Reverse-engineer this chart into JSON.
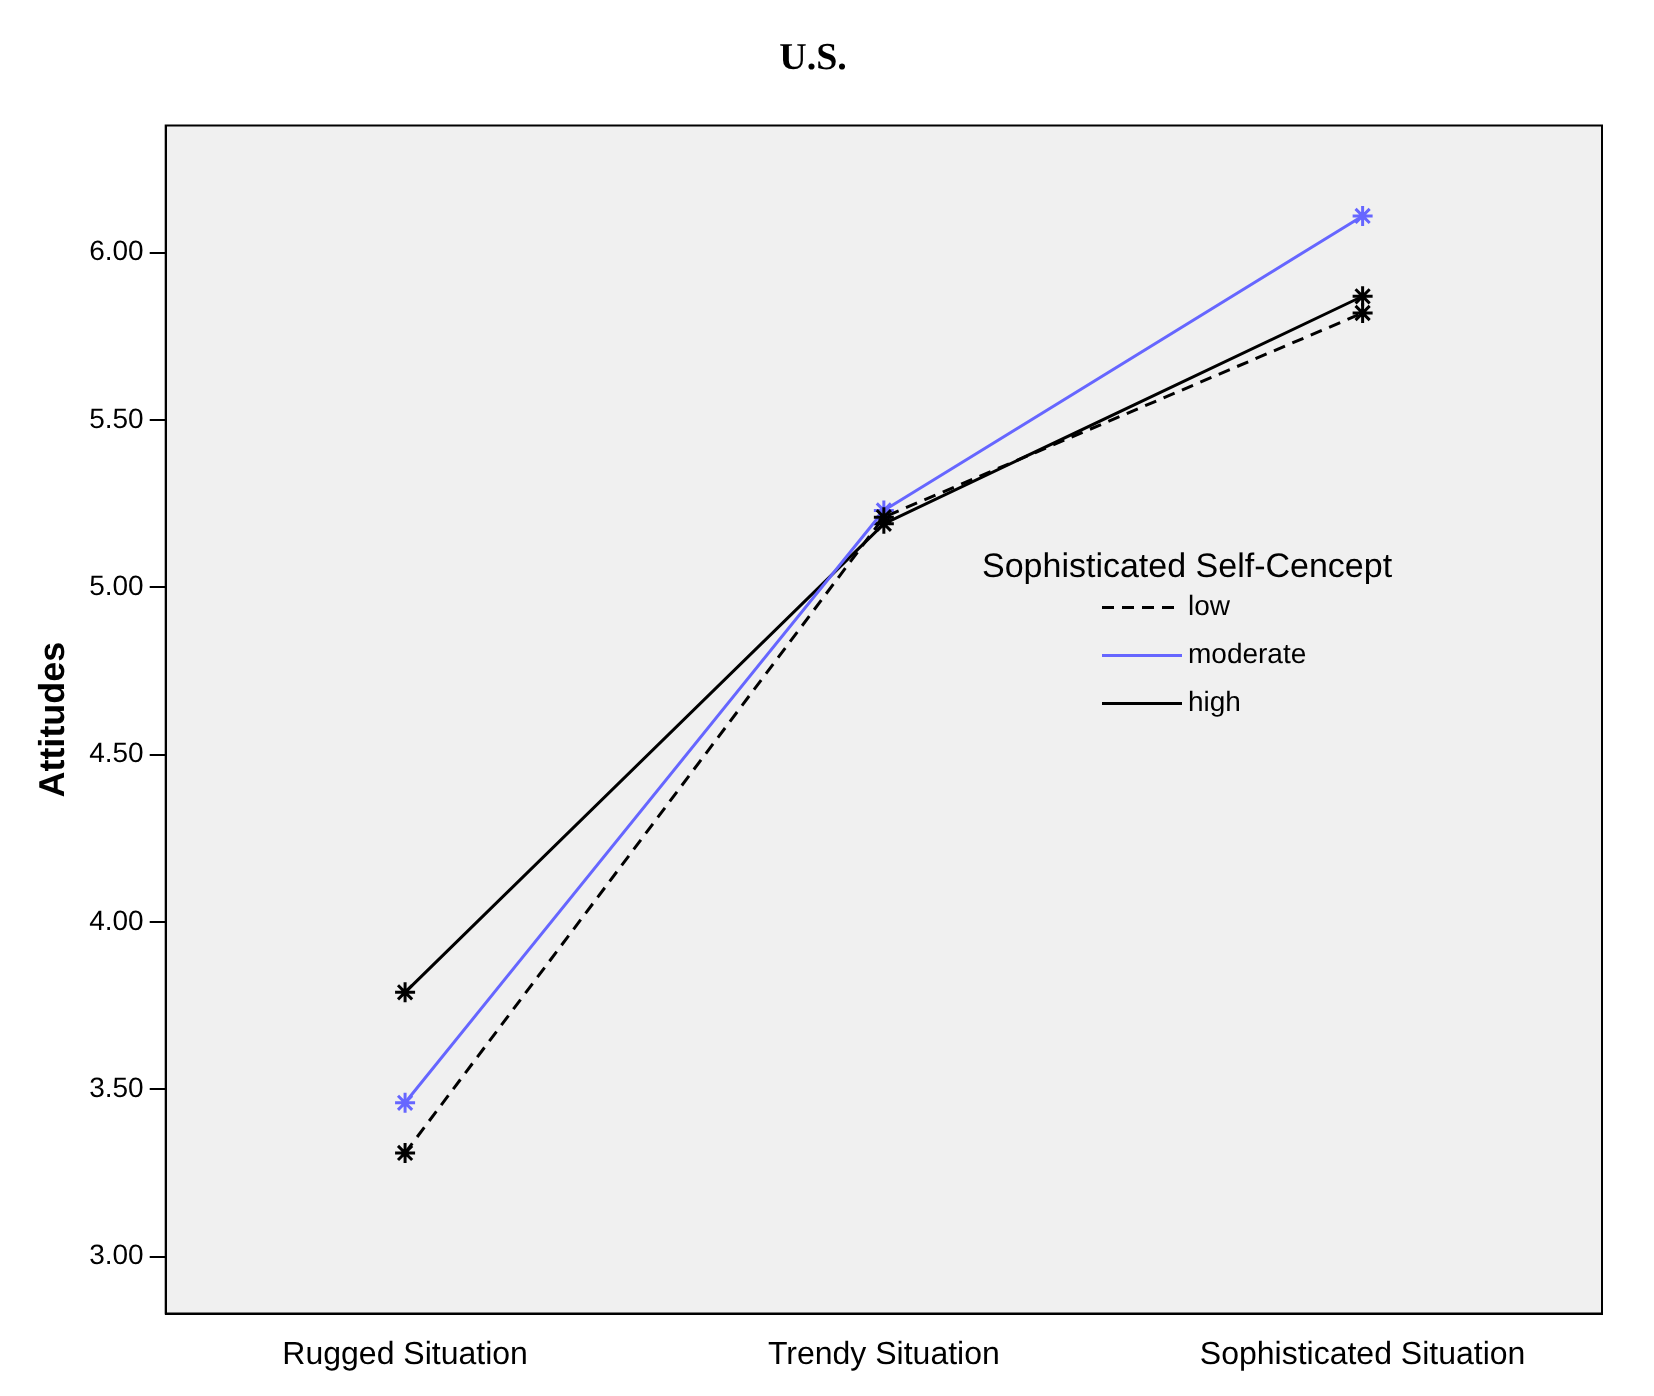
{
  "chart_data": {
    "type": "line",
    "title": "U.S.",
    "ylabel": "Attitudes",
    "legend_title": "Sophisticated Self-Cencept",
    "categories": [
      "Rugged Situation",
      "Trendy Situation",
      "Sophisticated Situation"
    ],
    "series": [
      {
        "name": "low",
        "color": "#000000",
        "line_style": "dashed",
        "values": [
          3.31,
          5.21,
          5.82
        ]
      },
      {
        "name": "moderate",
        "color": "#6666ff",
        "line_style": "solid",
        "values": [
          3.46,
          5.23,
          6.11
        ]
      },
      {
        "name": "high",
        "color": "#000000",
        "line_style": "solid",
        "values": [
          3.79,
          5.19,
          5.87
        ]
      }
    ],
    "ylim": [
      2.83,
      6.38
    ],
    "yticks": [
      {
        "value": 3,
        "label": "3.00"
      },
      {
        "value": 3.5,
        "label": "3.50"
      },
      {
        "value": 4,
        "label": "4.00"
      },
      {
        "value": 4.5,
        "label": "4.50"
      },
      {
        "value": 5,
        "label": "5.00"
      },
      {
        "value": 5.5,
        "label": "5.50"
      },
      {
        "value": 6,
        "label": "6.00"
      }
    ],
    "grid": false,
    "legend": "right",
    "marker": "cross"
  }
}
